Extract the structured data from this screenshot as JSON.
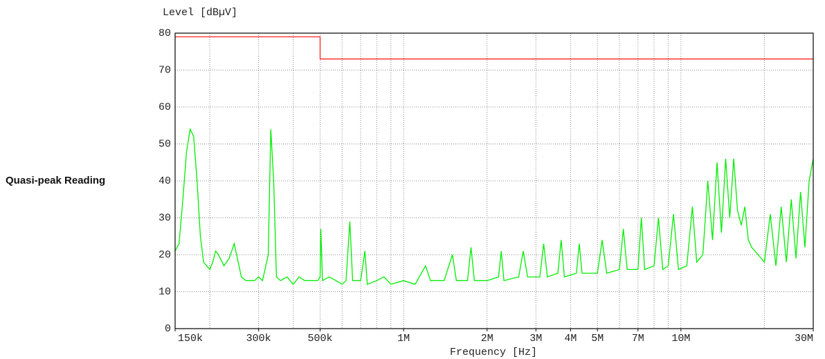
{
  "chart_data": {
    "type": "line",
    "title": "Level [dBµV]",
    "xlabel": "Frequency [Hz]",
    "ylabel": "Quasi-peak Reading",
    "xscale": "log",
    "xlim": [
      150000,
      30000000
    ],
    "ylim": [
      0,
      80
    ],
    "yticks": [
      0,
      10,
      20,
      30,
      40,
      50,
      60,
      70,
      80
    ],
    "xticks": [
      {
        "value": 150000,
        "label": "150k"
      },
      {
        "value": 300000,
        "label": "300k"
      },
      {
        "value": 500000,
        "label": "500k"
      },
      {
        "value": 1000000,
        "label": "1M"
      },
      {
        "value": 2000000,
        "label": "2M"
      },
      {
        "value": 3000000,
        "label": "3M"
      },
      {
        "value": 4000000,
        "label": "4M"
      },
      {
        "value": 5000000,
        "label": "5M"
      },
      {
        "value": 7000000,
        "label": "7M"
      },
      {
        "value": 10000000,
        "label": "10M"
      },
      {
        "value": 30000000,
        "label": "30M"
      }
    ],
    "minor_xticks": [
      200000,
      300000,
      400000,
      500000,
      600000,
      700000,
      800000,
      900000,
      1000000,
      2000000,
      3000000,
      4000000,
      5000000,
      6000000,
      7000000,
      8000000,
      9000000,
      10000000,
      20000000
    ],
    "grid": true,
    "series": [
      {
        "color": "#00ee00",
        "x": [
          150000,
          155000,
          160000,
          165000,
          170000,
          175000,
          180000,
          185000,
          190000,
          200000,
          205000,
          210000,
          215000,
          225000,
          235000,
          245000,
          250000,
          260000,
          270000,
          290000,
          300000,
          310000,
          325000,
          332000,
          340000,
          348000,
          360000,
          380000,
          400000,
          420000,
          440000,
          460000,
          490000,
          500000,
          503000,
          510000,
          540000,
          570000,
          600000,
          620000,
          640000,
          655000,
          700000,
          725000,
          740000,
          800000,
          850000,
          900000,
          1000000,
          1100000,
          1200000,
          1250000,
          1400000,
          1500000,
          1550000,
          1700000,
          1750000,
          1800000,
          2000000,
          2200000,
          2250000,
          2300000,
          2600000,
          2700000,
          2800000,
          3100000,
          3200000,
          3300000,
          3600000,
          3700000,
          3800000,
          4200000,
          4300000,
          4400000,
          5000000,
          5200000,
          5400000,
          6000000,
          6200000,
          6400000,
          7000000,
          7200000,
          7400000,
          8000000,
          8300000,
          8600000,
          9000000,
          9400000,
          9800000,
          10500000,
          11000000,
          11400000,
          12000000,
          12500000,
          13000000,
          13500000,
          14000000,
          14500000,
          15000000,
          15500000,
          16000000,
          16500000,
          17000000,
          17500000,
          18000000,
          19000000,
          20000000,
          21000000,
          22000000,
          23000000,
          24000000,
          25000000,
          26000000,
          27000000,
          28000000,
          29000000,
          30000000
        ],
        "values": [
          21,
          23,
          35,
          48,
          54,
          52,
          40,
          25,
          18,
          16,
          18,
          21,
          20,
          17,
          19,
          23,
          20,
          14,
          13,
          13,
          14,
          13,
          20,
          54,
          40,
          14,
          13,
          14,
          12,
          14,
          13,
          13,
          13,
          14,
          27,
          13,
          14,
          13,
          12,
          13,
          29,
          13,
          13,
          21,
          12,
          13,
          14,
          12,
          13,
          12,
          17,
          13,
          13,
          20,
          13,
          13,
          22,
          13,
          13,
          14,
          21,
          13,
          14,
          21,
          14,
          14,
          23,
          14,
          15,
          24,
          14,
          15,
          23,
          15,
          15,
          24,
          15,
          16,
          27,
          16,
          16,
          30,
          16,
          17,
          30,
          16,
          17,
          31,
          16,
          17,
          33,
          18,
          20,
          40,
          24,
          45,
          26,
          46,
          30,
          46,
          32,
          28,
          33,
          24,
          22,
          20,
          18,
          31,
          17,
          33,
          18,
          35,
          19,
          37,
          22,
          40,
          46
        ]
      },
      {
        "color": "#ff2020",
        "x": [
          150000,
          500000,
          500000,
          30000000
        ],
        "values": [
          79,
          79,
          73,
          73
        ]
      }
    ]
  }
}
